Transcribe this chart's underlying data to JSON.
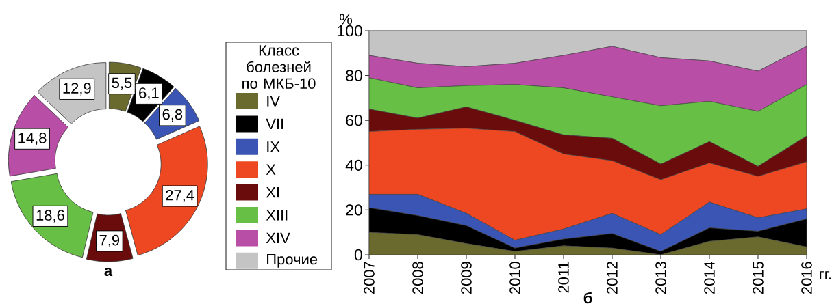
{
  "chart_data": [
    {
      "type": "donut",
      "title": "а",
      "categories": [
        "IV",
        "VII",
        "IX",
        "X",
        "XI",
        "XIII",
        "XIV",
        "Прочие"
      ],
      "values": [
        5.5,
        6.1,
        6.8,
        27.4,
        7.9,
        18.6,
        14.8,
        12.9
      ],
      "value_labels": [
        "5,5",
        "6,1",
        "6,8",
        "27,4",
        "7,9",
        "18,6",
        "14,8",
        "12,9"
      ],
      "colors": [
        "#6b6a2e",
        "#000000",
        "#3b55b4",
        "#ee4823",
        "#6a0c0c",
        "#67bf45",
        "#b84ea5",
        "#c4c4c4"
      ],
      "legend": "right",
      "legend_title": "Класс болезней по МКБ-10"
    },
    {
      "type": "area",
      "title": "б",
      "xlabel": "гг.",
      "ylabel": "%",
      "stacked": true,
      "x": [
        2007,
        2008,
        2009,
        2010,
        2011,
        2012,
        2013,
        2014,
        2015,
        2016
      ],
      "xlim": [
        2007,
        2016
      ],
      "xticks": [
        2007,
        2008,
        2009,
        2010,
        2011,
        2012,
        2013,
        2014,
        2015,
        2016
      ],
      "ylim": [
        0,
        100
      ],
      "yticks": [
        0,
        20,
        40,
        60,
        80,
        100
      ],
      "series": [
        {
          "color": "#6b6a2e",
          "values": [
            10,
            9,
            5,
            1.5,
            4,
            3,
            0,
            6,
            8,
            3.5
          ]
        },
        {
          "color": "#000000",
          "values": [
            11,
            8.5,
            8,
            1.5,
            3,
            6.5,
            1.5,
            6,
            2.5,
            12.5
          ]
        },
        {
          "color": "#3b55b4",
          "values": [
            6,
            9.5,
            5.5,
            3.5,
            4.5,
            9,
            7.5,
            11.5,
            6,
            4.5
          ]
        },
        {
          "color": "#ee4823",
          "values": [
            28,
            29,
            38,
            48.5,
            33.5,
            23.5,
            24.5,
            17.5,
            18.5,
            21
          ]
        },
        {
          "color": "#6a0c0c",
          "values": [
            10,
            5,
            9.5,
            5,
            8.5,
            10,
            7,
            9.5,
            4.5,
            11.5
          ]
        },
        {
          "color": "#67bf45",
          "values": [
            14,
            13.5,
            9.5,
            16,
            21,
            18.5,
            26,
            18,
            24.5,
            23
          ]
        },
        {
          "color": "#b84ea5",
          "values": [
            10,
            11,
            8.5,
            9.5,
            14.5,
            22.5,
            21.5,
            18,
            18,
            17
          ]
        },
        {
          "color": "#c4c4c4",
          "values": [
            11,
            14.5,
            16,
            14.5,
            11,
            7,
            12,
            13.5,
            18,
            7
          ]
        }
      ]
    }
  ]
}
